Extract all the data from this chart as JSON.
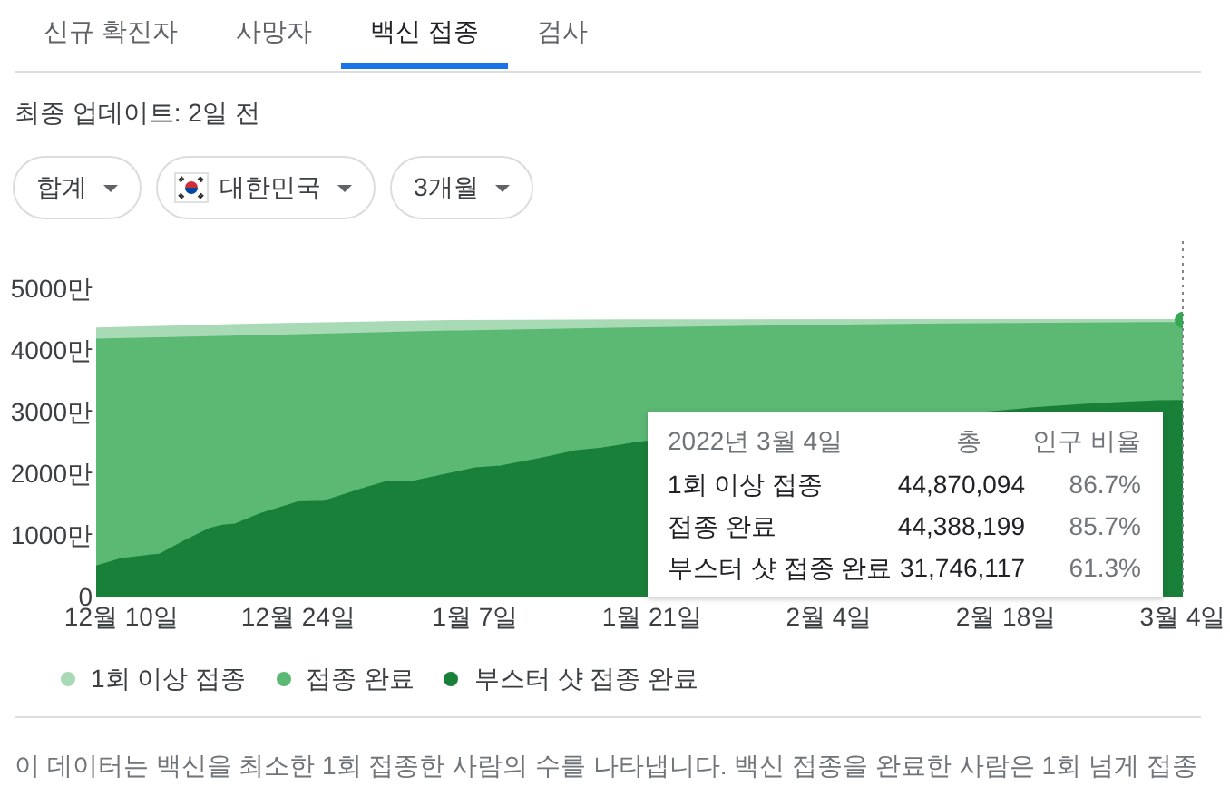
{
  "chart_data": {
    "type": "area",
    "subtitle": "최종 업데이트: 2일 전",
    "annotations": [
      "신규 확진자",
      "사망자",
      "백신 접종",
      "검사",
      "합계",
      "대한민국",
      "3개월",
      "2022년 3월 4일",
      "총",
      "인구 비율",
      "44,870,094",
      "44,388,199",
      "31,746,117",
      "86.7%",
      "85.7%",
      "61.3%",
      "이 데이터는 백신을 최소한 1회 접종한 사람의 수를 나타냅니다. 백신 접종을 완료한 사람은 1회 넘게 접종"
    ],
    "series": [
      {
        "name": "1회 이상 접종",
        "color": "#a8dab5",
        "x": [
          "2021-12-08",
          "2021-12-22",
          "2022-01-05",
          "2022-01-19",
          "2022-03-04"
        ],
        "values": [
          4350,
          4420,
          4470,
          4480,
          4487.0094
        ]
      },
      {
        "name": "접종 완료",
        "color": "#5bb974",
        "x": [
          "2021-12-08",
          "2021-12-22",
          "2022-01-05",
          "2022-01-19",
          "2022-02-02",
          "2022-02-16",
          "2022-03-04"
        ],
        "values": [
          4170,
          4230,
          4300,
          4350,
          4390,
          4420,
          4438.8199
        ]
      },
      {
        "name": "부스터 샷 접종 완료",
        "color": "#188038",
        "x": [
          "2021-12-08",
          "2021-12-10",
          "2021-12-12",
          "2021-12-13",
          "2021-12-15",
          "2021-12-17",
          "2021-12-18",
          "2021-12-19",
          "2021-12-21",
          "2021-12-24",
          "2021-12-26",
          "2021-12-29",
          "2021-12-31",
          "2022-01-02",
          "2022-01-04",
          "2022-01-07",
          "2022-01-09",
          "2022-01-12",
          "2022-01-15",
          "2022-01-17",
          "2022-01-20",
          "2022-02-19",
          "2022-02-20",
          "2022-02-22",
          "2022-02-25",
          "2022-02-28",
          "2022-03-02",
          "2022-03-04"
        ],
        "values": [
          490,
          610,
          660,
          680,
          900,
          1100,
          1150,
          1170,
          1340,
          1530,
          1540,
          1740,
          1860,
          1860,
          1950,
          2080,
          2110,
          2230,
          2360,
          2400,
          2500,
          3030,
          3050,
          3080,
          3120,
          3150,
          3170,
          3174.6117
        ]
      },
      {
        "type": "scatter",
        "color": "#34a853",
        "marker": "circle",
        "x": [
          "2022-03-04"
        ],
        "values": [
          4487.0094
        ]
      }
    ],
    "xlim": [
      "2021-12-08",
      "2022-03-04"
    ],
    "xticks": [
      {
        "value": "2021-12-10",
        "label": "12월 10일"
      },
      {
        "value": "2021-12-24",
        "label": "12월 24일"
      },
      {
        "value": "2022-01-07",
        "label": "1월 7일"
      },
      {
        "value": "2022-01-21",
        "label": "1월 21일"
      },
      {
        "value": "2022-02-04",
        "label": "2월 4일"
      },
      {
        "value": "2022-02-18",
        "label": "2월 18일"
      },
      {
        "value": "2022-03-04",
        "label": "3월 4일"
      }
    ],
    "ylim": [
      0,
      5000
    ],
    "yticks": [
      0,
      {
        "value": 1000,
        "label": "1000만"
      },
      {
        "value": 2000,
        "label": "2000만"
      },
      {
        "value": 3000,
        "label": "3000만"
      },
      {
        "value": 4000,
        "label": "4000만"
      },
      {
        "value": 5000,
        "label": "5000만"
      }
    ],
    "legend": "bottom",
    "ref_lines": [
      {
        "axis": "x",
        "value": "2022-03-04",
        "color": "#80868b",
        "line_style": "dotted"
      }
    ]
  }
}
